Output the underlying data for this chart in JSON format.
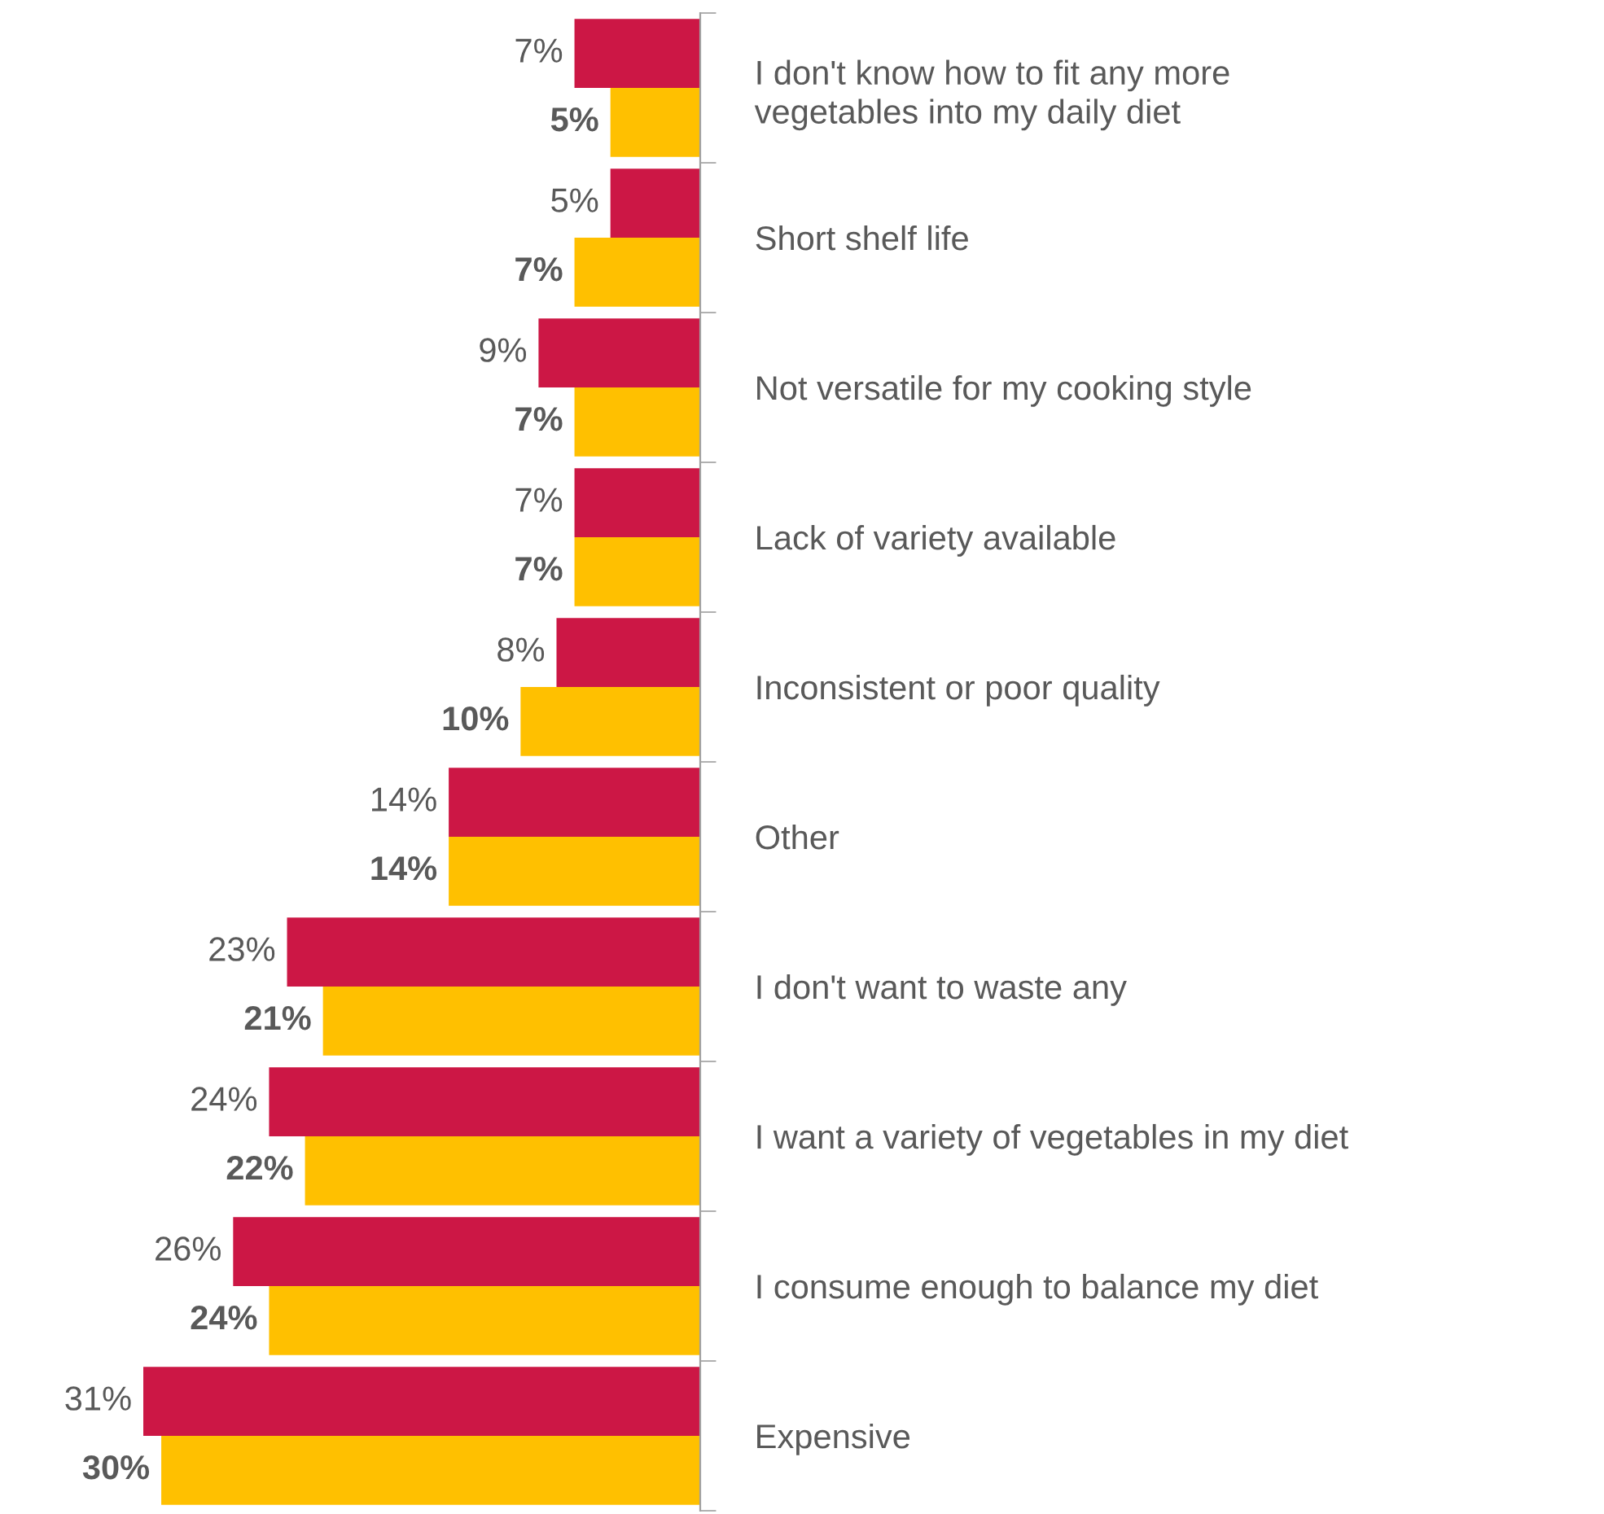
{
  "chart_data": {
    "type": "bar",
    "orientation": "horizontal",
    "categories": [
      "I don't know how to fit any more vegetables into my daily diet",
      "Short shelf life",
      "Not versatile for my cooking style",
      "Lack of variety available",
      "Inconsistent or poor quality",
      "Other",
      "I don't want to waste any",
      "I want a variety of vegetables in my diet",
      "I consume enough to balance my diet",
      "Expensive"
    ],
    "series": [
      {
        "color": "#cc1745",
        "values": [
          7,
          5,
          9,
          7,
          8,
          14,
          23,
          24,
          26,
          31
        ],
        "value_labels": [
          "7%",
          "5%",
          "9%",
          "7%",
          "8%",
          "14%",
          "23%",
          "24%",
          "26%",
          "31%"
        ]
      },
      {
        "color": "#ffc000",
        "values": [
          5,
          7,
          7,
          7,
          10,
          14,
          21,
          22,
          24,
          30
        ],
        "value_labels": [
          "5%",
          "7%",
          "7%",
          "7%",
          "10%",
          "14%",
          "21%",
          "22%",
          "24%",
          "30%"
        ]
      }
    ],
    "tick_labels": "y",
    "grid": false,
    "legend": false
  }
}
